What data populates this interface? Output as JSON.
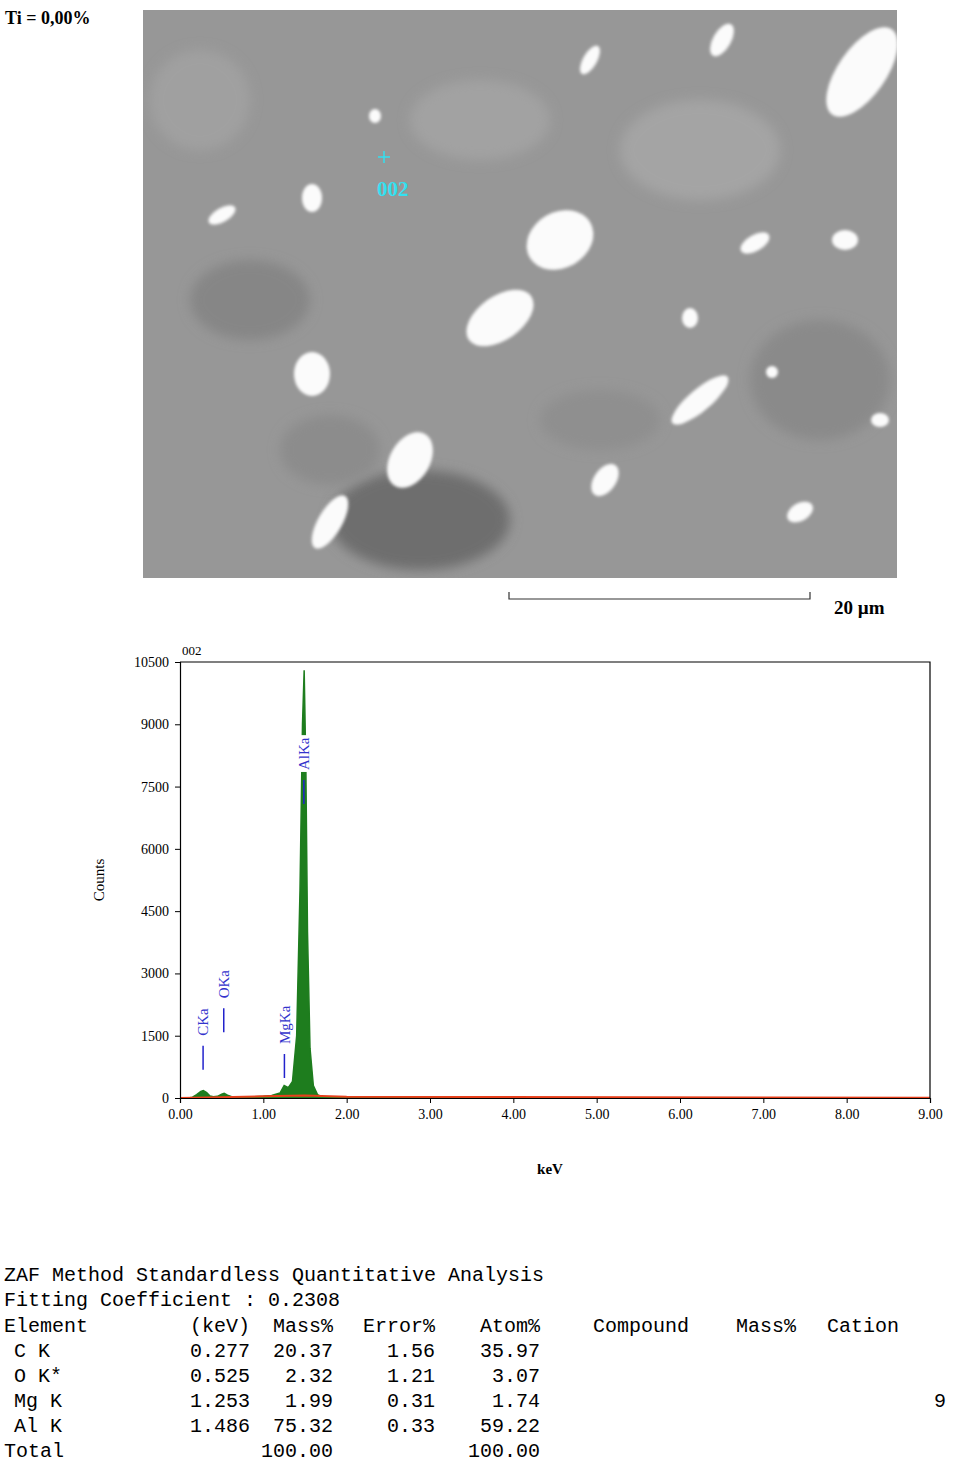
{
  "micrograph": {
    "label": "Ti = 0,00%",
    "point_label": "002",
    "scale_bar": "20 µm"
  },
  "chart_data": {
    "type": "area",
    "title": "002",
    "x_label": "keV",
    "y_label": "Counts",
    "xlim": [
      0,
      9
    ],
    "ylim": [
      0,
      10500
    ],
    "xticks": [
      {
        "value": 0,
        "label": "0.00"
      },
      {
        "value": 1,
        "label": "1.00"
      },
      {
        "value": 2,
        "label": "2.00"
      },
      {
        "value": 3,
        "label": "3.00"
      },
      {
        "value": 4,
        "label": "4.00"
      },
      {
        "value": 5,
        "label": "5.00"
      },
      {
        "value": 6,
        "label": "6.00"
      },
      {
        "value": 7,
        "label": "7.00"
      },
      {
        "value": 8,
        "label": "8.00"
      },
      {
        "value": 9,
        "label": "9.00"
      }
    ],
    "yticks": [
      0,
      1500,
      3000,
      4500,
      6000,
      7500,
      9000,
      10500
    ],
    "grid": false,
    "series": [
      {
        "type": "area",
        "color": "#1e7d1e",
        "x": [
          0.1,
          0.15,
          0.2,
          0.25,
          0.28,
          0.32,
          0.36,
          0.4,
          0.45,
          0.5,
          0.53,
          0.57,
          0.62,
          0.7,
          0.8,
          0.9,
          1.0,
          1.1,
          1.2,
          1.25,
          1.3,
          1.35,
          1.4,
          1.44,
          1.47,
          1.49,
          1.51,
          1.53,
          1.56,
          1.6,
          1.65,
          1.7,
          1.8,
          2.0,
          3.0,
          5.0,
          7.0,
          9.0
        ],
        "values": [
          0,
          20,
          80,
          160,
          180,
          130,
          50,
          30,
          40,
          90,
          110,
          70,
          30,
          20,
          20,
          30,
          40,
          60,
          120,
          300,
          250,
          400,
          1500,
          5000,
          9000,
          10300,
          8000,
          4000,
          1200,
          300,
          80,
          30,
          15,
          10,
          5,
          3,
          2,
          0
        ]
      },
      {
        "type": "line",
        "color": "#e8401c",
        "x": [
          0,
          0.5,
          1.0,
          1.5,
          2.0,
          9.0
        ],
        "values": [
          0,
          20,
          40,
          60,
          30,
          5
        ]
      }
    ],
    "annotations": [
      {
        "text": "CKa",
        "x": 0.277,
        "y": 1500
      },
      {
        "text": "OKa",
        "x": 0.525,
        "y": 2400
      },
      {
        "text": "MgKa",
        "x": 1.253,
        "y": 1300
      },
      {
        "text": "AlKa",
        "x": 1.486,
        "y": 7900
      }
    ]
  },
  "analysis": {
    "title": "ZAF Method Standardless Quantitative Analysis",
    "fitting": "Fitting Coefficient : 0.2308",
    "columns": [
      "Element",
      "(keV)",
      "Mass%",
      "Error%",
      "Atom%",
      "Compound",
      "Mass%",
      "Cation"
    ],
    "rows": [
      [
        "C K",
        "0.277",
        "20.37",
        "1.56",
        "35.97"
      ],
      [
        "O K*",
        "0.525",
        "2.32",
        "1.21",
        "3.07"
      ],
      [
        "Mg K",
        "1.253",
        "1.99",
        "0.31",
        "1.74"
      ],
      [
        "Al K",
        "1.486",
        "75.32",
        "0.33",
        "59.22"
      ]
    ],
    "total": {
      "label": "Total",
      "mass": "100.00",
      "atom": "100.00"
    },
    "page_number": "9"
  }
}
